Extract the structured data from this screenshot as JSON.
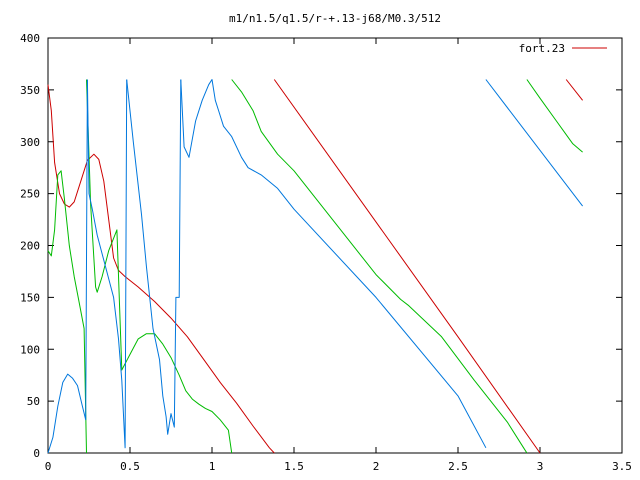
{
  "chart_data": {
    "type": "line",
    "title": "m1/n1.5/q1.5/r-+.13-j68/M0.3/512",
    "xlabel": "",
    "ylabel": "",
    "xlim": [
      0,
      3.5
    ],
    "ylim": [
      0,
      400
    ],
    "grid": false,
    "legend_position": "top-right",
    "x_ticks": [
      0,
      0.5,
      1,
      1.5,
      2,
      2.5,
      3,
      3.5
    ],
    "x_tick_labels": [
      "0",
      "0.5",
      "1",
      "1.5",
      "2",
      "2.5",
      "3",
      "3.5"
    ],
    "y_ticks": [
      0,
      50,
      100,
      150,
      200,
      250,
      300,
      350,
      400
    ],
    "y_tick_labels": [
      "0",
      "50",
      "100",
      "150",
      "200",
      "250",
      "300",
      "350",
      "400"
    ],
    "series": [
      {
        "name": "fort.23",
        "color": "#cc0000",
        "segments": [
          [
            [
              0,
              355
            ],
            [
              0.02,
              330
            ],
            [
              0.04,
              280
            ],
            [
              0.07,
              250
            ],
            [
              0.1,
              240
            ],
            [
              0.13,
              237
            ],
            [
              0.16,
              242
            ],
            [
              0.2,
              262
            ],
            [
              0.24,
              282
            ],
            [
              0.28,
              288
            ],
            [
              0.31,
              283
            ],
            [
              0.34,
              262
            ],
            [
              0.37,
              225
            ],
            [
              0.4,
              188
            ],
            [
              0.43,
              176
            ],
            [
              0.47,
              170
            ],
            [
              0.55,
              160
            ],
            [
              0.65,
              146
            ],
            [
              0.75,
              130
            ],
            [
              0.85,
              112
            ],
            [
              0.95,
              90
            ],
            [
              1.05,
              68
            ],
            [
              1.15,
              48
            ],
            [
              1.25,
              26
            ],
            [
              1.35,
              5
            ],
            [
              1.38,
              0
            ]
          ],
          [
            [
              1.38,
              360
            ],
            [
              2.5,
              112
            ],
            [
              3.0,
              0
            ]
          ],
          [
            [
              3.16,
              360
            ],
            [
              3.26,
              340
            ]
          ]
        ]
      },
      {
        "name": "",
        "color": "#00bb00",
        "segments": [
          [
            [
              0,
              195
            ],
            [
              0.02,
              190
            ],
            [
              0.04,
              215
            ],
            [
              0.06,
              268
            ],
            [
              0.08,
              272
            ],
            [
              0.1,
              245
            ],
            [
              0.13,
              200
            ],
            [
              0.16,
              170
            ],
            [
              0.19,
              145
            ],
            [
              0.22,
              120
            ],
            [
              0.235,
              0
            ]
          ],
          [
            [
              0.235,
              360
            ],
            [
              0.26,
              240
            ],
            [
              0.29,
              160
            ],
            [
              0.3,
              155
            ],
            [
              0.33,
              170
            ],
            [
              0.37,
              195
            ],
            [
              0.42,
              215
            ],
            [
              0.45,
              80
            ],
            [
              0.5,
              95
            ],
            [
              0.55,
              110
            ],
            [
              0.6,
              115
            ],
            [
              0.65,
              115
            ],
            [
              0.7,
              105
            ],
            [
              0.75,
              92
            ],
            [
              0.8,
              75
            ],
            [
              0.84,
              60
            ],
            [
              0.88,
              52
            ],
            [
              0.92,
              47
            ],
            [
              0.96,
              43
            ],
            [
              1.0,
              40
            ],
            [
              1.05,
              32
            ],
            [
              1.1,
              22
            ],
            [
              1.12,
              0
            ]
          ],
          [
            [
              1.12,
              360
            ],
            [
              1.18,
              348
            ],
            [
              1.25,
              330
            ],
            [
              1.3,
              310
            ],
            [
              1.4,
              288
            ],
            [
              1.5,
              272
            ],
            [
              2.0,
              172
            ],
            [
              2.15,
              148
            ],
            [
              2.2,
              142
            ],
            [
              2.4,
              112
            ],
            [
              2.6,
              70
            ],
            [
              2.8,
              30
            ],
            [
              2.9,
              5
            ],
            [
              2.92,
              0
            ]
          ],
          [
            [
              2.92,
              360
            ],
            [
              3.0,
              342
            ],
            [
              3.1,
              320
            ],
            [
              3.2,
              298
            ],
            [
              3.26,
              290
            ]
          ]
        ]
      },
      {
        "name": "",
        "color": "#0077dd",
        "segments": [
          [
            [
              0,
              0
            ],
            [
              0.03,
              15
            ],
            [
              0.06,
              45
            ],
            [
              0.09,
              68
            ],
            [
              0.12,
              76
            ],
            [
              0.15,
              72
            ],
            [
              0.18,
              65
            ],
            [
              0.21,
              45
            ],
            [
              0.23,
              32
            ],
            [
              0.24,
              360
            ]
          ],
          [
            [
              0.24,
              360
            ],
            [
              0.25,
              250
            ],
            [
              0.27,
              235
            ],
            [
              0.3,
              210
            ],
            [
              0.35,
              180
            ],
            [
              0.4,
              150
            ],
            [
              0.43,
              110
            ],
            [
              0.45,
              70
            ],
            [
              0.47,
              5
            ],
            [
              0.48,
              360
            ]
          ],
          [
            [
              0.48,
              360
            ],
            [
              0.52,
              300
            ],
            [
              0.57,
              230
            ],
            [
              0.6,
              180
            ],
            [
              0.64,
              120
            ],
            [
              0.68,
              90
            ],
            [
              0.7,
              55
            ],
            [
              0.72,
              35
            ],
            [
              0.73,
              18
            ],
            [
              0.75,
              38
            ],
            [
              0.77,
              25
            ],
            [
              0.78,
              150
            ],
            [
              0.8,
              150
            ],
            [
              0.81,
              360
            ]
          ],
          [
            [
              0.81,
              360
            ],
            [
              0.83,
              295
            ],
            [
              0.86,
              285
            ],
            [
              0.9,
              320
            ],
            [
              0.94,
              340
            ],
            [
              0.98,
              355
            ],
            [
              1.0,
              360
            ],
            [
              1.02,
              340
            ],
            [
              1.04,
              330
            ],
            [
              1.07,
              315
            ],
            [
              1.12,
              305
            ],
            [
              1.18,
              285
            ],
            [
              1.22,
              275
            ],
            [
              1.3,
              268
            ],
            [
              1.4,
              255
            ],
            [
              1.5,
              235
            ],
            [
              2.0,
              150
            ],
            [
              2.5,
              55
            ],
            [
              2.67,
              5
            ]
          ],
          [
            [
              2.67,
              360
            ],
            [
              3.26,
              238
            ]
          ]
        ]
      }
    ]
  }
}
